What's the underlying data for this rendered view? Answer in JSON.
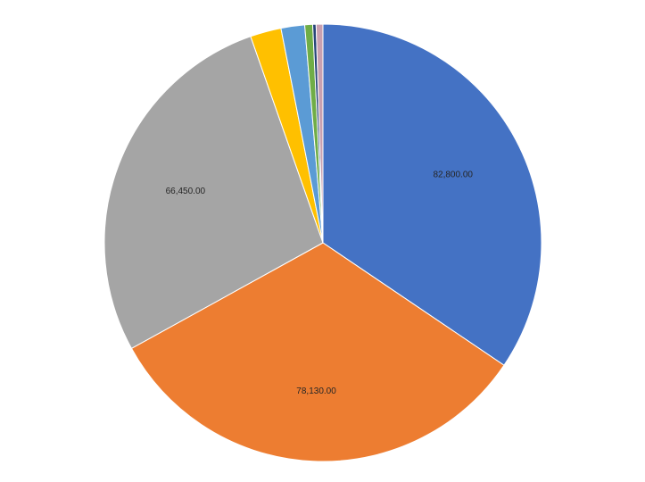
{
  "chart_data": {
    "type": "pie",
    "slices": [
      {
        "value": 82800,
        "label": "82,800.00",
        "color": "#4472C4"
      },
      {
        "value": 78130,
        "label": "78,130.00",
        "color": "#ED7D31"
      },
      {
        "value": 66450,
        "label": "66,450.00",
        "color": "#A5A5A5"
      },
      {
        "value": 5500,
        "label": "",
        "color": "#FFC000"
      },
      {
        "value": 4200,
        "label": "",
        "color": "#5B9BD5"
      },
      {
        "value": 1400,
        "label": "",
        "color": "#70AD47"
      },
      {
        "value": 600,
        "label": "",
        "color": "#264478"
      },
      {
        "value": 1200,
        "label": "",
        "color": "#C9A0B0"
      }
    ],
    "legend": "none"
  }
}
